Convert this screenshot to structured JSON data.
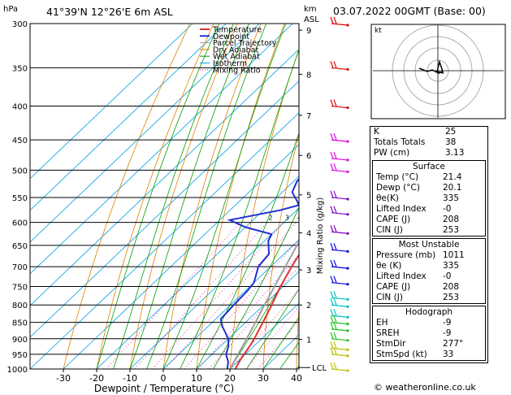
{
  "header": {
    "location": "41°39'N  12°26'E  6m  ASL",
    "datetime": "03.07.2022  00GMT  (Base: 00)",
    "left_unit": "hPa",
    "right_unit_1": "km",
    "right_unit_2": "ASL"
  },
  "legend": [
    "Temperature",
    "Dewpoint",
    "Parcel Trajectory",
    "Dry Adiabat",
    "Wet Adiabat",
    "Isotherm",
    "Mixing Ratio"
  ],
  "colors": {
    "temperature": "#e03030",
    "dewpoint": "#2030d0",
    "parcel": "#a0a0a0",
    "dry_adiabat": "#e08000",
    "wet_adiabat": "#00a000",
    "isotherm": "#00a0e0",
    "mixing_ratio": "#e000a0",
    "wind": [
      "#e00000",
      "#e000e0",
      "#8000c0",
      "#0000e0",
      "#00c0c0",
      "#20c020",
      "#c0c000"
    ]
  },
  "hodograph": {
    "label": "kt"
  },
  "indices": {
    "top": [
      {
        "label": "K",
        "value": "25"
      },
      {
        "label": "Totals Totals",
        "value": "38"
      },
      {
        "label": "PW (cm)",
        "value": "3.13"
      }
    ],
    "surface": {
      "title": "Surface",
      "rows": [
        {
          "label": "Temp (°C)",
          "value": "21.4"
        },
        {
          "label": "Dewp (°C)",
          "value": "20.1"
        },
        {
          "label": "θe(K)",
          "value": "335"
        },
        {
          "label": "Lifted Index",
          "value": "-0"
        },
        {
          "label": "CAPE (J)",
          "value": "208"
        },
        {
          "label": "CIN (J)",
          "value": "253"
        }
      ]
    },
    "most_unstable": {
      "title": "Most Unstable",
      "rows": [
        {
          "label": "Pressure (mb)",
          "value": "1011"
        },
        {
          "label": "θe (K)",
          "value": "335"
        },
        {
          "label": "Lifted Index",
          "value": "-0"
        },
        {
          "label": "CAPE (J)",
          "value": "208"
        },
        {
          "label": "CIN (J)",
          "value": "253"
        }
      ]
    },
    "hodograph": {
      "title": "Hodograph",
      "rows": [
        {
          "label": "EH",
          "value": "-9"
        },
        {
          "label": "SREH",
          "value": "-9"
        },
        {
          "label": "StmDir",
          "value": "277°"
        },
        {
          "label": "StmSpd (kt)",
          "value": "33"
        }
      ]
    }
  },
  "footer": "© weatheronline.co.uk",
  "chart_data": {
    "type": "line",
    "xlabel": "Dewpoint / Temperature (°C)",
    "ylabel_right": "Mixing Ratio (g/kg)",
    "x_ticks": [
      -30,
      -20,
      -10,
      0,
      10,
      20,
      30,
      40
    ],
    "xlim": [
      -40,
      40
    ],
    "pressure_levels": [
      300,
      350,
      400,
      450,
      500,
      550,
      600,
      650,
      700,
      750,
      800,
      850,
      900,
      950,
      1000
    ],
    "height_km_labels": [
      {
        "km": "9",
        "p": 307
      },
      {
        "km": "8",
        "p": 358
      },
      {
        "km": "7",
        "p": 413
      },
      {
        "km": "6",
        "p": 475
      },
      {
        "km": "5",
        "p": 545
      },
      {
        "km": "4",
        "p": 622
      },
      {
        "km": "3",
        "p": 708
      },
      {
        "km": "2",
        "p": 800
      },
      {
        "km": "1",
        "p": 902
      }
    ],
    "lcl": {
      "label": "LCL",
      "p": 995
    },
    "mixing_ratio_labels": [
      "2",
      "3",
      "4",
      "6",
      "8",
      "10",
      "15",
      "20",
      "25"
    ],
    "series": [
      {
        "name": "Temperature",
        "points": [
          [
            1013,
            21.4
          ],
          [
            1000,
            21.6
          ],
          [
            975,
            20.5
          ],
          [
            950,
            19.6
          ],
          [
            925,
            18.8
          ],
          [
            900,
            17.8
          ],
          [
            850,
            15.2
          ],
          [
            800,
            12.4
          ],
          [
            750,
            9.2
          ],
          [
            700,
            6.3
          ],
          [
            650,
            3.6
          ],
          [
            600,
            0.6
          ],
          [
            580,
            -0.6
          ],
          [
            560,
            -1.8
          ],
          [
            540,
            -3.8
          ],
          [
            500,
            -7.2
          ],
          [
            450,
            -12.8
          ],
          [
            400,
            -18.6
          ],
          [
            350,
            -26.3
          ],
          [
            300,
            -35.0
          ]
        ]
      },
      {
        "name": "Dewpoint",
        "points": [
          [
            1013,
            20.1
          ],
          [
            1000,
            19.2
          ],
          [
            975,
            17.2
          ],
          [
            950,
            14.2
          ],
          [
            925,
            12.5
          ],
          [
            900,
            10.0
          ],
          [
            860,
            4.0
          ],
          [
            840,
            1.5
          ],
          [
            800,
            1.0
          ],
          [
            760,
            0.6
          ],
          [
            740,
            0.0
          ],
          [
            700,
            -3.7
          ],
          [
            670,
            -4.5
          ],
          [
            640,
            -8.8
          ],
          [
            625,
            -10.0
          ],
          [
            610,
            -20.0
          ],
          [
            595,
            -27.0
          ],
          [
            575,
            -15.0
          ],
          [
            565,
            -11.0
          ],
          [
            560,
            -12.0
          ],
          [
            540,
            -17.0
          ],
          [
            520,
            -19.0
          ],
          [
            500,
            -19.5
          ],
          [
            470,
            -19.5
          ],
          [
            450,
            -17.0
          ],
          [
            420,
            -18.0
          ],
          [
            400,
            -21.0
          ],
          [
            370,
            -23.0
          ],
          [
            350,
            -27.0
          ],
          [
            320,
            -29.0
          ],
          [
            305,
            -33.0
          ],
          [
            300,
            -34.0
          ]
        ]
      },
      {
        "name": "Parcel Trajectory",
        "points": [
          [
            1013,
            21.4
          ],
          [
            995,
            19.8
          ],
          [
            950,
            17.8
          ],
          [
            900,
            15.5
          ],
          [
            850,
            13.0
          ],
          [
            800,
            10.2
          ],
          [
            750,
            7.4
          ],
          [
            700,
            4.4
          ],
          [
            650,
            1.2
          ],
          [
            600,
            -2.4
          ],
          [
            550,
            -6.3
          ],
          [
            500,
            -10.8
          ],
          [
            450,
            -16.0
          ],
          [
            400,
            -22.0
          ],
          [
            350,
            -29.0
          ],
          [
            300,
            -37.5
          ]
        ]
      }
    ]
  }
}
